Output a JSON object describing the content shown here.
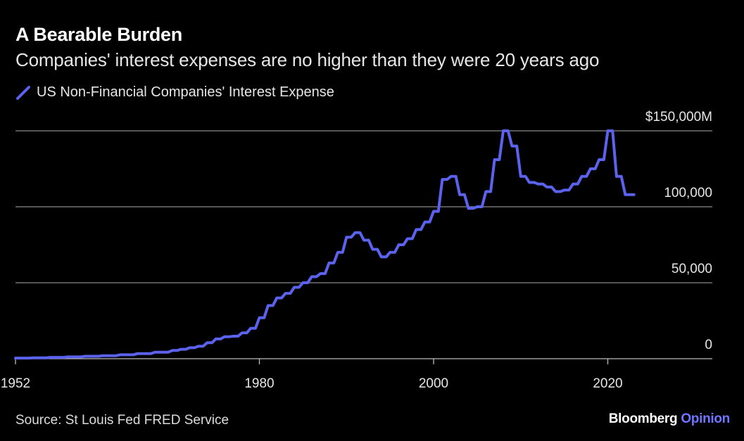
{
  "title": "A Bearable Burden",
  "subtitle": "Companies' interest expenses are no higher than they were 20 years ago",
  "source": "Source: St Louis Fed FRED Service",
  "brand": {
    "primary": "Bloomberg",
    "secondary": "Opinion"
  },
  "colors": {
    "line": "#5b63ee",
    "grid": "#8a8a8a",
    "background": "#000000",
    "brand_accent": "#6f76ff"
  },
  "chart_data": {
    "type": "line",
    "title": "A Bearable Burden",
    "subtitle": "Companies' interest expenses are no higher than they were 20 years ago",
    "xlabel": "",
    "ylabel": "",
    "xlim": [
      1952,
      2032
    ],
    "ylim": [
      0,
      150000
    ],
    "x_ticks": [
      {
        "value": 1952,
        "label": "1952"
      },
      {
        "value": 1980,
        "label": "1980"
      },
      {
        "value": 2000,
        "label": "2000"
      },
      {
        "value": 2020,
        "label": "2020"
      }
    ],
    "y_ticks": [
      {
        "value": 0,
        "label": "0"
      },
      {
        "value": 50000,
        "label": "50,000"
      },
      {
        "value": 100000,
        "label": "100,000"
      },
      {
        "value": 150000,
        "label": "$150,000M"
      }
    ],
    "grid": true,
    "legend_position": "top-left",
    "series": [
      {
        "name": "US Non-Financial Companies' Interest Expense",
        "x": [
          1952,
          1954,
          1956,
          1958,
          1960,
          1962,
          1964,
          1966,
          1968,
          1970,
          1971,
          1972,
          1973,
          1974,
          1975,
          1976,
          1977,
          1978,
          1979,
          1980,
          1981,
          1982,
          1983,
          1984,
          1985,
          1986,
          1987,
          1988,
          1989,
          1990,
          1991,
          1992,
          1993,
          1994,
          1995,
          1996,
          1997,
          1998,
          1999,
          2000,
          2001,
          2002,
          2003,
          2004,
          2005,
          2006,
          2007,
          2008,
          2009,
          2010,
          2011,
          2012,
          2013,
          2014,
          2015,
          2016,
          2017,
          2018,
          2019,
          2020,
          2021,
          2022,
          2023
        ],
        "values": [
          400,
          600,
          900,
          1200,
          1600,
          2000,
          2600,
          3400,
          4300,
          5400,
          6200,
          7200,
          8200,
          10500,
          13000,
          14500,
          14800,
          17000,
          20000,
          27000,
          35000,
          40000,
          43000,
          47000,
          50000,
          54000,
          56000,
          63000,
          70000,
          80000,
          83000,
          78000,
          72000,
          67000,
          70000,
          75000,
          79000,
          85000,
          90000,
          97000,
          118000,
          120000,
          108000,
          99000,
          100000,
          110000,
          131000,
          150000,
          140000,
          120000,
          116000,
          115000,
          113000,
          110000,
          111000,
          115000,
          120000,
          125000,
          131000,
          150000,
          120000,
          108000,
          108000
        ]
      }
    ]
  }
}
